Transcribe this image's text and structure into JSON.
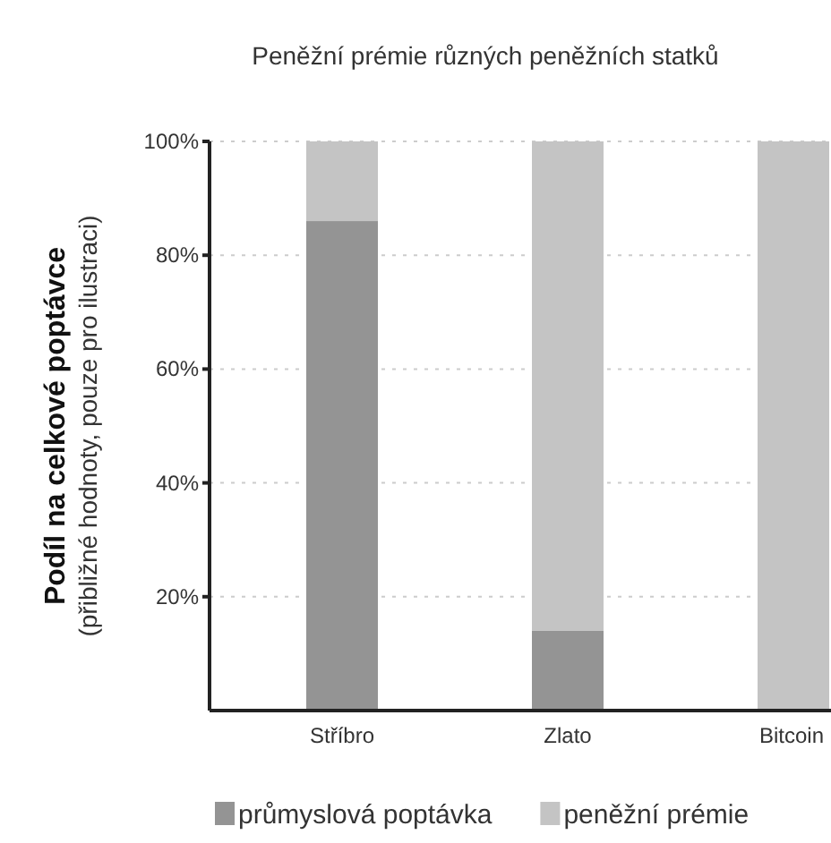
{
  "chart_data": {
    "type": "bar",
    "title": "Peněžní prémie různých peněžních statků",
    "ylabel": "Podíl na celkové poptávce",
    "subtitle": "(přibližné hodnoty, pouze pro ilustraci)",
    "categories": [
      "Stříbro",
      "Zlato",
      "Bitcoin"
    ],
    "stacked": true,
    "series": [
      {
        "name": "průmyslová poptávka",
        "color": "#949494",
        "values": [
          86,
          14,
          0
        ]
      },
      {
        "name": "peněžní prémie",
        "color": "#c4c4c4",
        "values": [
          14,
          86,
          100
        ]
      }
    ],
    "ylim": [
      0,
      100
    ],
    "yticks": [
      {
        "value": 20,
        "label": "20%"
      },
      {
        "value": 40,
        "label": "40%"
      },
      {
        "value": 60,
        "label": "60%"
      },
      {
        "value": 80,
        "label": "80%"
      },
      {
        "value": 100,
        "label": "100%"
      }
    ],
    "grid": "y",
    "legend": "bottom"
  }
}
